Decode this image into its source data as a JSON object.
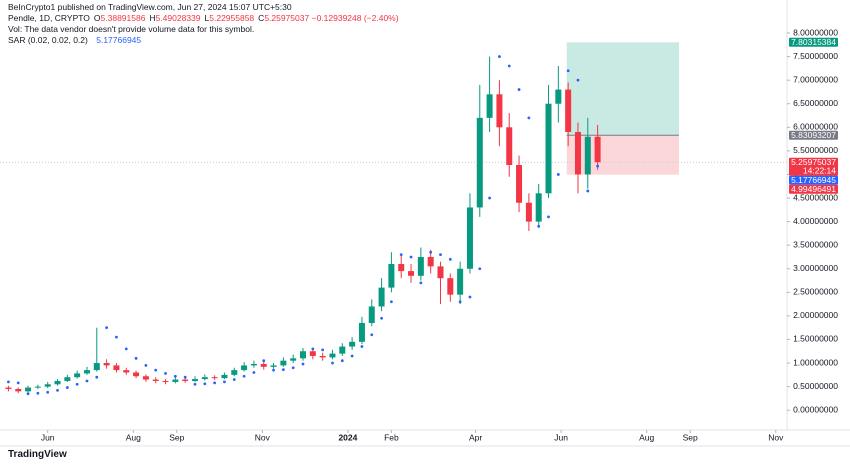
{
  "header": {
    "title": "BeInCrypto1 published on TradingView.com, Jun 27, 2024 15:07 UTC+5:30"
  },
  "chart_data": {
    "type": "candlestick",
    "symbol": "Pendle, 1D, CRYPTO",
    "ohlc_labels": [
      "O",
      "H",
      "L",
      "C"
    ],
    "ohlc_values": [
      5.38891586,
      5.49028339,
      5.22955858,
      5.25975037
    ],
    "change": "−0.12939248 (−2.40%)",
    "volume_note": "Vol: The data vendor doesn't provide volume data for this symbol.",
    "x": [
      2,
      9,
      16,
      23,
      30,
      37,
      44,
      51,
      58,
      65,
      72,
      79,
      86,
      93,
      100,
      107,
      114,
      121,
      128,
      135,
      142,
      149,
      156,
      163,
      170,
      177,
      184,
      191,
      198,
      205,
      212,
      219,
      226,
      233,
      240,
      247,
      254,
      261,
      268,
      275,
      282,
      289,
      296,
      303,
      310,
      317,
      324,
      331,
      338,
      345,
      352,
      359,
      366,
      373,
      380,
      387,
      394,
      401,
      408,
      415,
      422
    ],
    "open": [
      0.48,
      0.45,
      0.4,
      0.48,
      0.5,
      0.55,
      0.62,
      0.7,
      0.78,
      0.85,
      1.0,
      0.95,
      0.85,
      0.8,
      0.72,
      0.65,
      0.62,
      0.6,
      0.65,
      0.62,
      0.66,
      0.7,
      0.68,
      0.75,
      0.85,
      0.95,
      0.98,
      0.92,
      0.95,
      1.05,
      1.1,
      1.25,
      1.15,
      1.12,
      1.2,
      1.35,
      1.45,
      1.85,
      2.2,
      2.6,
      3.1,
      2.95,
      2.85,
      3.25,
      3.05,
      2.8,
      2.45,
      3.0,
      4.3,
      6.2,
      6.7,
      6.0,
      5.2,
      4.4,
      4.0,
      4.6,
      6.5,
      6.8,
      5.9,
      5.0,
      5.8
    ],
    "high": [
      0.52,
      0.48,
      0.52,
      0.54,
      0.6,
      0.66,
      0.75,
      0.84,
      0.92,
      1.75,
      1.08,
      1.0,
      0.9,
      0.84,
      0.76,
      0.7,
      0.66,
      0.7,
      0.68,
      0.72,
      0.76,
      0.74,
      0.8,
      0.9,
      1.02,
      1.05,
      1.02,
      1.0,
      1.12,
      1.18,
      1.32,
      1.3,
      1.22,
      1.28,
      1.42,
      1.55,
      1.98,
      2.35,
      2.8,
      3.35,
      3.3,
      3.1,
      3.45,
      3.4,
      3.15,
      2.9,
      3.15,
      4.6,
      6.9,
      7.5,
      7.0,
      6.3,
      5.4,
      4.6,
      4.8,
      6.9,
      7.3,
      6.95,
      6.1,
      6.2,
      6.05
    ],
    "low": [
      0.4,
      0.36,
      0.38,
      0.45,
      0.47,
      0.52,
      0.6,
      0.67,
      0.75,
      0.82,
      0.88,
      0.8,
      0.75,
      0.68,
      0.6,
      0.57,
      0.55,
      0.57,
      0.58,
      0.6,
      0.63,
      0.64,
      0.66,
      0.72,
      0.82,
      0.9,
      0.86,
      0.88,
      0.92,
      1.0,
      1.05,
      1.08,
      1.05,
      1.08,
      1.15,
      1.28,
      1.4,
      1.78,
      2.1,
      2.5,
      2.8,
      2.7,
      2.75,
      2.9,
      2.25,
      2.3,
      2.25,
      2.9,
      4.1,
      5.9,
      5.6,
      4.95,
      4.2,
      3.8,
      3.9,
      4.5,
      6.1,
      5.6,
      4.6,
      4.7,
      5.1
    ],
    "close": [
      0.45,
      0.4,
      0.48,
      0.5,
      0.55,
      0.62,
      0.7,
      0.78,
      0.85,
      1.0,
      0.95,
      0.85,
      0.8,
      0.72,
      0.65,
      0.62,
      0.6,
      0.65,
      0.62,
      0.66,
      0.7,
      0.68,
      0.75,
      0.85,
      0.95,
      0.98,
      0.92,
      0.95,
      1.05,
      1.1,
      1.25,
      1.15,
      1.12,
      1.2,
      1.35,
      1.45,
      1.85,
      2.2,
      2.6,
      3.1,
      2.95,
      2.85,
      3.25,
      3.05,
      2.8,
      2.45,
      3.0,
      4.3,
      6.2,
      6.7,
      6.0,
      5.2,
      4.4,
      4.0,
      4.6,
      6.5,
      6.8,
      5.9,
      5.0,
      5.8,
      5.25975037
    ],
    "up_color": "#089981",
    "down_color": "#f23645",
    "sar": {
      "name": "SAR (0.02, 0.02, 0.2)",
      "color": "#2962ff",
      "values": [
        0.6,
        0.58,
        0.35,
        0.36,
        0.38,
        0.42,
        0.48,
        0.55,
        0.62,
        0.7,
        1.75,
        1.55,
        1.3,
        1.1,
        0.95,
        0.85,
        0.78,
        0.72,
        0.7,
        0.55,
        0.56,
        0.58,
        0.6,
        0.65,
        0.72,
        0.8,
        1.05,
        0.85,
        0.86,
        0.9,
        0.98,
        1.3,
        1.28,
        1.0,
        1.05,
        1.15,
        1.35,
        1.6,
        1.95,
        2.3,
        3.3,
        3.25,
        2.7,
        3.35,
        3.3,
        3.2,
        2.3,
        2.4,
        3.0,
        4.5,
        7.5,
        7.3,
        6.8,
        6.2,
        3.9,
        4.1,
        5.0,
        7.2,
        7.0,
        4.65,
        5.17766945
      ]
    },
    "countdown": "14:22:14",
    "position": {
      "start": 400,
      "end": 480,
      "entry": 5.83093207,
      "target": 7.80315384,
      "stop": 4.99496491
    },
    "xlim": [
      -4,
      557
    ],
    "xticks": [
      {
        "value": 30,
        "label": "Jun"
      },
      {
        "value": 91,
        "label": "Aug"
      },
      {
        "value": 122,
        "label": "Sep"
      },
      {
        "value": 183,
        "label": "Nov"
      },
      {
        "value": 244,
        "label": "2024"
      },
      {
        "value": 275,
        "label": "Feb"
      },
      {
        "value": 335,
        "label": "Apr"
      },
      {
        "value": 396,
        "label": "Jun"
      },
      {
        "value": 457,
        "label": "Aug"
      },
      {
        "value": 488,
        "label": "Sep"
      },
      {
        "value": 549,
        "label": "Nov"
      }
    ],
    "ylim": [
      -0.42,
      8.7
    ],
    "yticks": [
      {
        "value": 0,
        "label": "0.00000000"
      },
      {
        "value": 0.5,
        "label": "0.50000000"
      },
      {
        "value": 1,
        "label": "1.00000000"
      },
      {
        "value": 1.5,
        "label": "1.50000000"
      },
      {
        "value": 2,
        "label": "2.00000000"
      },
      {
        "value": 2.5,
        "label": "2.50000000"
      },
      {
        "value": 3,
        "label": "3.00000000"
      },
      {
        "value": 3.5,
        "label": "3.50000000"
      },
      {
        "value": 4,
        "label": "4.00000000"
      },
      {
        "value": 4.5,
        "label": "4.50000000"
      },
      {
        "value": 5,
        "label": "5.00000000"
      },
      {
        "value": 5.5,
        "label": "5.50000000"
      },
      {
        "value": 6,
        "label": "6.00000000"
      },
      {
        "value": 6.5,
        "label": "6.50000000"
      },
      {
        "value": 7,
        "label": "7.00000000"
      },
      {
        "value": 7.5,
        "label": "7.50000000"
      },
      {
        "value": 8,
        "label": "8.00000000"
      }
    ]
  },
  "footer": {
    "logo": "TradingView"
  }
}
